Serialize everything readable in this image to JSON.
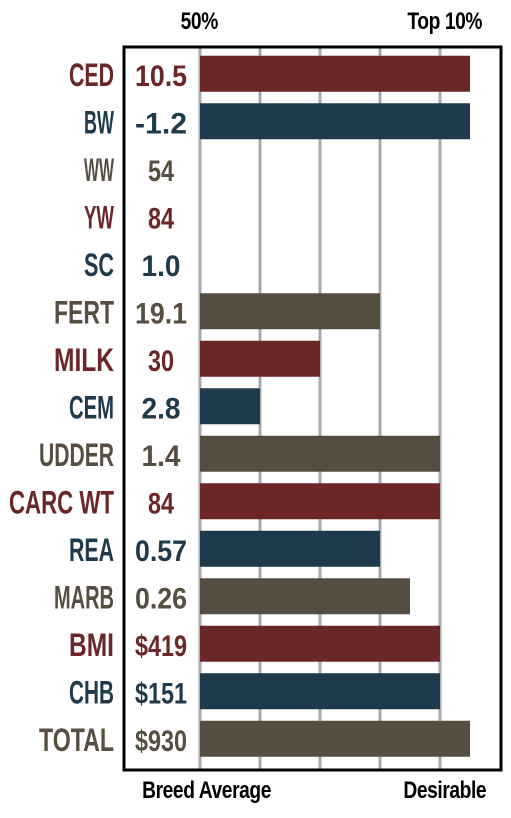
{
  "header": {
    "left_label": "50%",
    "right_label": "Top 10%"
  },
  "footer": {
    "left_label": "Breed Average",
    "right_label": "Desirable"
  },
  "colors": {
    "red": "#6b2628",
    "blue": "#1f3a4b",
    "gray": "#574e42",
    "grid": "#a9a9ad"
  },
  "chart_data": {
    "type": "bar",
    "orientation": "horizontal",
    "categories": [
      "CED",
      "BW",
      "WW",
      "YW",
      "SC",
      "FERT",
      "MILK",
      "CEM",
      "UDDER",
      "CARC WT",
      "REA",
      "MARB",
      "BMI",
      "CHB",
      "TOTAL"
    ],
    "value_labels": [
      "10.5",
      "-1.2",
      "54",
      "84",
      "1.0",
      "19.1",
      "30",
      "2.8",
      "1.4",
      "84",
      "0.57",
      "0.26",
      "$419",
      "$151",
      "$930"
    ],
    "values": [
      90,
      90,
      0,
      0,
      0,
      60,
      40,
      20,
      80,
      80,
      60,
      70,
      80,
      80,
      90
    ],
    "category_colors": [
      "red",
      "blue",
      "gray",
      "red",
      "blue",
      "gray",
      "red",
      "blue",
      "gray",
      "red",
      "blue",
      "gray",
      "red",
      "blue",
      "gray"
    ],
    "xlim": [
      0,
      100
    ],
    "grid": true
  }
}
